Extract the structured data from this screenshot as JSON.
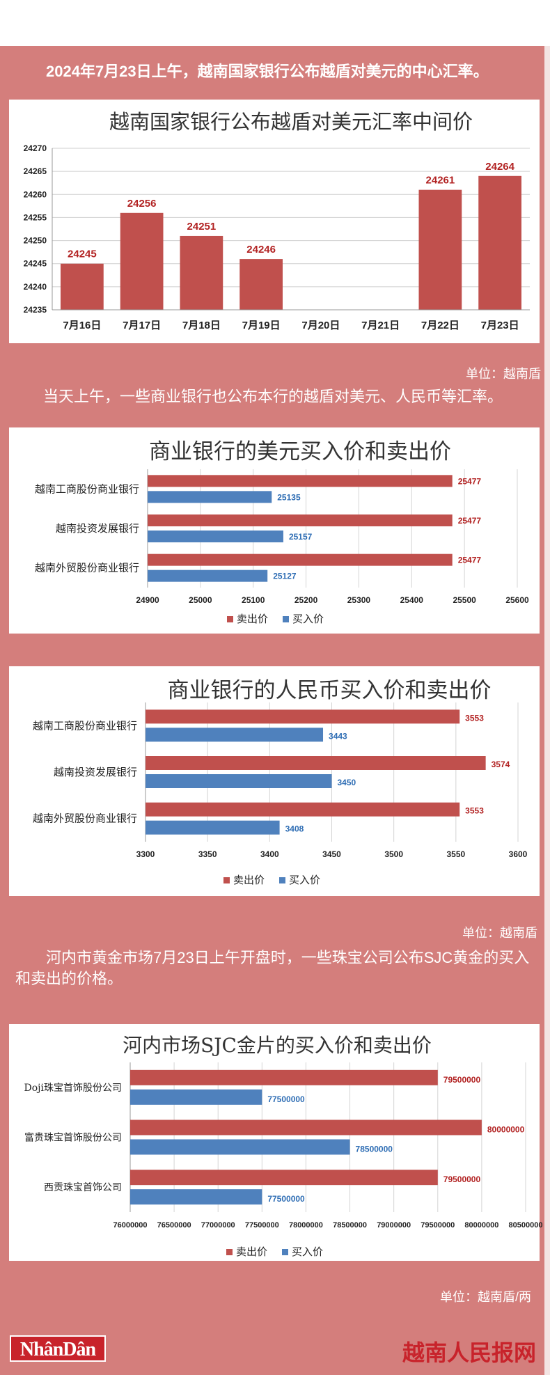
{
  "intro": {
    "p1": "2024年7月23日上午，越南国家银行公布越盾对美元的中心汇率。",
    "p2": "当天上午，一些商业银行也公布本行的越盾对美元、人民币等汇率。",
    "p3": "河内市黄金市场7月23日上午开盘时，一些珠宝公司公布SJC黄金的买入和卖出的价格。"
  },
  "units": {
    "u1": "单位：越南盾",
    "u2": "单位：越南盾",
    "u3": "单位：越南盾/两"
  },
  "footer": {
    "logo": "NhânDân",
    "brand": "越南人民报网"
  },
  "colors": {
    "background": "#d47e7c",
    "sell": "#c0504d",
    "buy": "#4f81bd",
    "title": "#333333"
  },
  "chart_data": [
    {
      "type": "bar",
      "title": "越南国家银行公布越盾对美元汇率中间价",
      "categories": [
        "7月16日",
        "7月17日",
        "7月18日",
        "7月19日",
        "7月20日",
        "7月21日",
        "7月22日",
        "7月23日"
      ],
      "values": [
        24245,
        24256,
        24251,
        24246,
        null,
        null,
        24261,
        24264
      ],
      "data_labels": [
        "24245",
        "24256",
        "24251",
        "24246",
        "",
        "",
        "24261",
        "24264"
      ],
      "ylim": [
        24235,
        24270
      ],
      "yticks": [
        "24235",
        "24240",
        "24245",
        "24250",
        "24255",
        "24260",
        "24265",
        "24270"
      ],
      "grid": true
    },
    {
      "type": "bar",
      "orientation": "horizontal",
      "title": "商业银行的美元买入价和卖出价",
      "categories": [
        "越南工商股份商业银行",
        "越南投资发展银行",
        "越南外贸股份商业银行"
      ],
      "series": [
        {
          "name": "卖出价",
          "values": [
            25477,
            25477,
            25477
          ],
          "labels": [
            "25477",
            "25477",
            "25477"
          ]
        },
        {
          "name": "买入价",
          "values": [
            25135,
            25157,
            25127
          ],
          "labels": [
            "25135",
            "25157",
            "25127"
          ]
        }
      ],
      "xlim": [
        24900,
        25600
      ],
      "xticks": [
        "24900",
        "25000",
        "25100",
        "25200",
        "25300",
        "25400",
        "25500",
        "25600"
      ],
      "legend": "bottom",
      "grid": true
    },
    {
      "type": "bar",
      "orientation": "horizontal",
      "title": "商业银行的人民币买入价和卖出价",
      "categories": [
        "越南工商股份商业银行",
        "越南投资发展银行",
        "越南外贸股份商业银行"
      ],
      "series": [
        {
          "name": "卖出价",
          "values": [
            3553,
            3574,
            3553
          ],
          "labels": [
            "3553",
            "3574",
            "3553"
          ]
        },
        {
          "name": "买入价",
          "values": [
            3443,
            3450,
            3408
          ],
          "labels": [
            "3443",
            "3450",
            "3408"
          ]
        }
      ],
      "xlim": [
        3300,
        3600
      ],
      "xticks": [
        "3300",
        "3350",
        "3400",
        "3450",
        "3500",
        "3550",
        "3600"
      ],
      "legend": "bottom",
      "grid": true
    },
    {
      "type": "bar",
      "orientation": "horizontal",
      "title": "河内市场SJC金片的买入价和卖出价",
      "categories": [
        "Doji珠宝首饰股份公司",
        "富贵珠宝首饰股份公司",
        "西贡珠宝首饰公司"
      ],
      "series": [
        {
          "name": "卖出价",
          "values": [
            79500000,
            80000000,
            79500000
          ],
          "labels": [
            "79500000",
            "80000000",
            "79500000"
          ]
        },
        {
          "name": "买入价",
          "values": [
            77500000,
            78500000,
            77500000
          ],
          "labels": [
            "77500000",
            "78500000",
            "77500000"
          ]
        }
      ],
      "xlim": [
        76000000,
        80500000
      ],
      "xticks": [
        "76000000",
        "76500000",
        "77000000",
        "77500000",
        "78000000",
        "78500000",
        "79000000",
        "79500000",
        "80000000",
        "80500000"
      ],
      "legend": "bottom",
      "grid": true
    }
  ]
}
